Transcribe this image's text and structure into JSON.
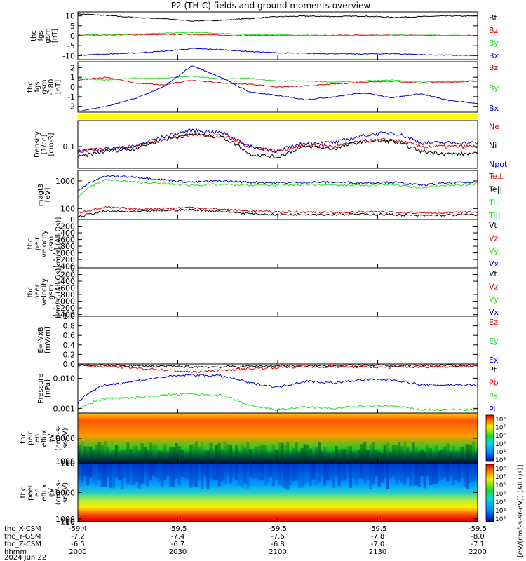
{
  "title": "P2 (TH-C) fields and ground moments overview",
  "colors": {
    "black": "#000000",
    "red": "#dd0000",
    "green": "#22dd22",
    "blue": "#0000cc",
    "mode_bar": "#ffff00"
  },
  "chart_data": [
    {
      "id": "fgs_gsm",
      "type": "line",
      "ylabel": [
        "thc",
        "fgs",
        "gsm",
        "[nT]"
      ],
      "yticks": [
        "10",
        "5",
        "0",
        "-5",
        "-10"
      ],
      "ylim": [
        -12,
        12
      ],
      "legend": [
        {
          "label": "Bt",
          "color": "#000000"
        },
        {
          "label": "Bz",
          "color": "#dd0000"
        },
        {
          "label": "By",
          "color": "#22dd22"
        },
        {
          "label": "Bx",
          "color": "#0000cc"
        }
      ],
      "series": [
        {
          "color": "#000000",
          "values": [
            11,
            10.2,
            9.2,
            8.6,
            7.5,
            7.8,
            8.7,
            9.6,
            9.9,
            9.7,
            9.9,
            9.3,
            9.6,
            10.0,
            9.9
          ]
        },
        {
          "color": "#dd0000",
          "values": [
            0.3,
            0.4,
            0.5,
            0.6,
            0.8,
            0.2,
            0.1,
            0.2,
            0.1,
            0.2,
            0.4,
            0.3,
            0.2,
            0.1,
            0.2
          ]
        },
        {
          "color": "#22dd22",
          "values": [
            0.2,
            0.5,
            0.8,
            1.3,
            1.8,
            1.2,
            0.5,
            0.4,
            0.3,
            0.1,
            0.0,
            0.3,
            0.3,
            0.2,
            0.0
          ]
        },
        {
          "color": "#0000cc",
          "values": [
            -9.8,
            -9.2,
            -8.7,
            -7.8,
            -6.5,
            -7.0,
            -7.9,
            -8.6,
            -8.9,
            -9.0,
            -9.2,
            -9.0,
            -9.5,
            -9.8,
            -10.0
          ]
        }
      ]
    },
    {
      "id": "fgs_gsm_filtered",
      "type": "line",
      "ylabel": [
        "thc",
        "fgs",
        "gsm",
        "-180",
        "[nT]"
      ],
      "yticks": [
        "2",
        "1",
        "0",
        "-1",
        "-2"
      ],
      "ylim": [
        -2.6,
        2.6
      ],
      "legend": [
        {
          "label": "Bz",
          "color": "#dd0000"
        },
        {
          "label": "By",
          "color": "#22dd22"
        },
        {
          "label": "Bx",
          "color": "#0000cc"
        }
      ],
      "series": [
        {
          "color": "#dd0000",
          "values": [
            0.7,
            1.0,
            0.4,
            0.2,
            0.7,
            0.4,
            0.3,
            0.0,
            0.1,
            0.3,
            0.5,
            0.6,
            0.4,
            0.5,
            0.6
          ]
        },
        {
          "color": "#22dd22",
          "values": [
            0.9,
            0.7,
            0.9,
            0.9,
            1.1,
            0.8,
            0.9,
            0.6,
            0.6,
            0.5,
            0.6,
            0.7,
            0.5,
            0.6,
            0.6
          ]
        },
        {
          "color": "#0000cc",
          "values": [
            -2.5,
            -2.0,
            -1.2,
            0.0,
            2.2,
            1.0,
            -0.5,
            -0.9,
            -1.3,
            -1.0,
            -0.6,
            -1.1,
            -0.7,
            -1.4,
            -1.7
          ]
        }
      ]
    },
    {
      "id": "density",
      "type": "line",
      "log": true,
      "ylabel": [
        "Density",
        "[1/cc]",
        "[cm-3]"
      ],
      "yticks": [
        "0.1"
      ],
      "yticks_values": [
        0.1
      ],
      "ylim": [
        0.035,
        0.35
      ],
      "legend": [
        {
          "label": "Ne",
          "color": "#dd0000"
        },
        {
          "label": "Ni",
          "color": "#000000"
        },
        {
          "label": "Npot",
          "color": "#0000cc"
        }
      ],
      "series": [
        {
          "color": "#dd0000",
          "values": [
            0.08,
            0.09,
            0.1,
            0.14,
            0.18,
            0.17,
            0.1,
            0.08,
            0.11,
            0.1,
            0.13,
            0.14,
            0.1,
            0.1,
            0.1
          ]
        },
        {
          "color": "#000000",
          "values": [
            0.06,
            0.08,
            0.09,
            0.14,
            0.18,
            0.16,
            0.07,
            0.06,
            0.1,
            0.09,
            0.13,
            0.13,
            0.08,
            0.07,
            0.07
          ]
        },
        {
          "color": "#0000cc",
          "values": [
            0.08,
            0.09,
            0.1,
            0.16,
            0.22,
            0.2,
            0.1,
            0.08,
            0.12,
            0.12,
            0.17,
            0.2,
            0.12,
            0.12,
            0.12
          ]
        }
      ]
    },
    {
      "id": "temperature",
      "type": "line",
      "log": true,
      "ylabel": [
        "magt3",
        "[eV]"
      ],
      "yticks": [
        "1000",
        "100"
      ],
      "yticks_values": [
        1000,
        100
      ],
      "ylim": [
        40,
        2400
      ],
      "legend": [
        {
          "label": "Te⊥",
          "color": "#dd0000"
        },
        {
          "label": "Te||",
          "color": "#000000"
        },
        {
          "label": "Ti⊥",
          "color": "#22dd22"
        },
        {
          "label": "Ti||",
          "color": "#22dd22"
        }
      ],
      "series": [
        {
          "color": "#0000cc",
          "values": [
            400,
            1500,
            1400,
            1100,
            900,
            1000,
            900,
            850,
            900,
            900,
            850,
            900,
            700,
            850,
            900
          ]
        },
        {
          "color": "#22dd22",
          "values": [
            250,
            1100,
            900,
            800,
            700,
            750,
            700,
            700,
            750,
            700,
            700,
            750,
            550,
            700,
            750
          ]
        },
        {
          "color": "#dd0000",
          "values": [
            70,
            110,
            95,
            100,
            110,
            95,
            80,
            75,
            75,
            70,
            75,
            75,
            70,
            70,
            75
          ]
        },
        {
          "color": "#000000",
          "values": [
            50,
            80,
            75,
            85,
            90,
            80,
            65,
            60,
            62,
            60,
            62,
            60,
            55,
            58,
            60
          ]
        }
      ]
    },
    {
      "id": "peir_velocity",
      "type": "line",
      "ylabel": [
        "thc",
        "peir",
        "velocity",
        "gsm",
        "[km/s] (All Qs)]"
      ],
      "yticks": [
        "0",
        "-200",
        "-400",
        "-600",
        "-800",
        "-1000",
        "-1200",
        "-1400"
      ],
      "ylim": [
        -1450,
        0
      ],
      "legend": [
        {
          "label": "Vt",
          "color": "#000000"
        },
        {
          "label": "Vz",
          "color": "#dd0000"
        },
        {
          "label": "Vy",
          "color": "#22dd22"
        },
        {
          "label": "Vx",
          "color": "#0000cc"
        }
      ],
      "series": []
    },
    {
      "id": "peer_velocity",
      "type": "line",
      "ylabel": [
        "thc",
        "peer",
        "velocity",
        "gsm",
        "[km/s] (All Qs)]"
      ],
      "yticks": [
        "0",
        "-200",
        "-400",
        "-600",
        "-800",
        "-1000",
        "-1200",
        "-1400"
      ],
      "ylim": [
        -1450,
        0
      ],
      "legend": [
        {
          "label": "Vt",
          "color": "#000000"
        },
        {
          "label": "Vz",
          "color": "#dd0000"
        },
        {
          "label": "Vy",
          "color": "#22dd22"
        },
        {
          "label": "Vx",
          "color": "#0000cc"
        }
      ],
      "series": []
    },
    {
      "id": "efield",
      "type": "line",
      "ylabel": [
        "E=-VxB",
        "[mV/m]"
      ],
      "yticks": [
        "1.0",
        "0.8",
        "0.6",
        "0.4",
        "0.2",
        "0.0"
      ],
      "ylim": [
        0,
        1
      ],
      "legend": [
        {
          "label": "Ez",
          "color": "#dd0000"
        },
        {
          "label": "Ey",
          "color": "#22dd22"
        },
        {
          "label": "Ex",
          "color": "#0000cc"
        }
      ],
      "series": []
    },
    {
      "id": "pressure",
      "type": "line",
      "log": true,
      "ylabel": [
        "Pressure",
        "[nPa]"
      ],
      "yticks": [
        "0.010",
        "0.001"
      ],
      "yticks_values": [
        0.01,
        0.001
      ],
      "ylim": [
        0.0007,
        0.03
      ],
      "legend": [
        {
          "label": "Pt",
          "color": "#000000"
        },
        {
          "label": "Pb",
          "color": "#dd0000"
        },
        {
          "label": "Pe",
          "color": "#22dd22"
        },
        {
          "label": "Pi",
          "color": "#0000cc"
        }
      ],
      "series": [
        {
          "color": "#000000",
          "values": [
            0.028,
            0.027,
            0.026,
            0.025,
            0.024,
            0.024,
            0.025,
            0.026,
            0.026,
            0.027,
            0.027,
            0.026,
            0.027,
            0.027,
            0.027
          ]
        },
        {
          "color": "#dd0000",
          "values": [
            0.027,
            0.025,
            0.022,
            0.019,
            0.016,
            0.018,
            0.021,
            0.023,
            0.024,
            0.024,
            0.024,
            0.023,
            0.024,
            0.025,
            0.026
          ]
        },
        {
          "color": "#0000cc",
          "values": [
            0.0015,
            0.006,
            0.008,
            0.011,
            0.013,
            0.012,
            0.007,
            0.005,
            0.008,
            0.007,
            0.009,
            0.009,
            0.006,
            0.006,
            0.006
          ]
        },
        {
          "color": "#22dd22",
          "values": [
            0.0009,
            0.0022,
            0.0022,
            0.0028,
            0.003,
            0.0027,
            0.0012,
            0.0009,
            0.0011,
            0.001,
            0.0012,
            0.0012,
            0.0009,
            0.0009,
            0.0009
          ]
        }
      ]
    },
    {
      "id": "peir_spectrogram",
      "type": "heatmap",
      "ylabel": [
        "thc",
        "peir",
        "en",
        "eflux",
        "eV",
        "(cm²-s-",
        "sr-eV)"
      ],
      "yticks": [
        "10000",
        "1000",
        "100",
        "10"
      ],
      "yticks_values": [
        10000,
        1000,
        100,
        10
      ],
      "ylim": [
        5,
        20000
      ]
    },
    {
      "id": "peer_spectrogram",
      "type": "heatmap",
      "ylabel": [
        "thc",
        "peer",
        "en",
        "eflux",
        "eV",
        "(cm²-s-",
        "sr-eV)"
      ],
      "yticks": [
        "10000",
        "1000",
        "100",
        "10"
      ],
      "yticks_values": [
        10000,
        1000,
        100,
        10
      ],
      "ylim": [
        5,
        20000
      ]
    }
  ],
  "colorbar": {
    "label": "[eV/(cm²-s-sr-eV)] (All Qs)]",
    "ticks_top": [
      "10⁸",
      "10⁷",
      "10⁶",
      "10⁵",
      "10⁴",
      "10³"
    ],
    "ticks_bottom": [
      "10⁸",
      "10⁷",
      "10⁶",
      "10⁵",
      "10⁴",
      "10³",
      "10²"
    ]
  },
  "xaxis": {
    "row_labels": [
      "thc_X-CSM",
      "thc_Y-GSM",
      "thc_Z-CSM",
      "hhmm",
      "2024 Jun 22"
    ],
    "columns": [
      {
        "x": "-59.4",
        "y": "-7.2",
        "z": "-6.5",
        "t": "2000"
      },
      {
        "x": "-59.5",
        "y": "-7.4",
        "z": "-6.7",
        "t": "2030"
      },
      {
        "x": "-59.5",
        "y": "-7.6",
        "z": "-6.8",
        "t": "2100"
      },
      {
        "x": "-59.5",
        "y": "-7.8",
        "z": "-7.0",
        "t": "2130"
      },
      {
        "x": "-59.5",
        "y": "-8.0",
        "z": "-7.1",
        "t": "2200"
      }
    ]
  }
}
